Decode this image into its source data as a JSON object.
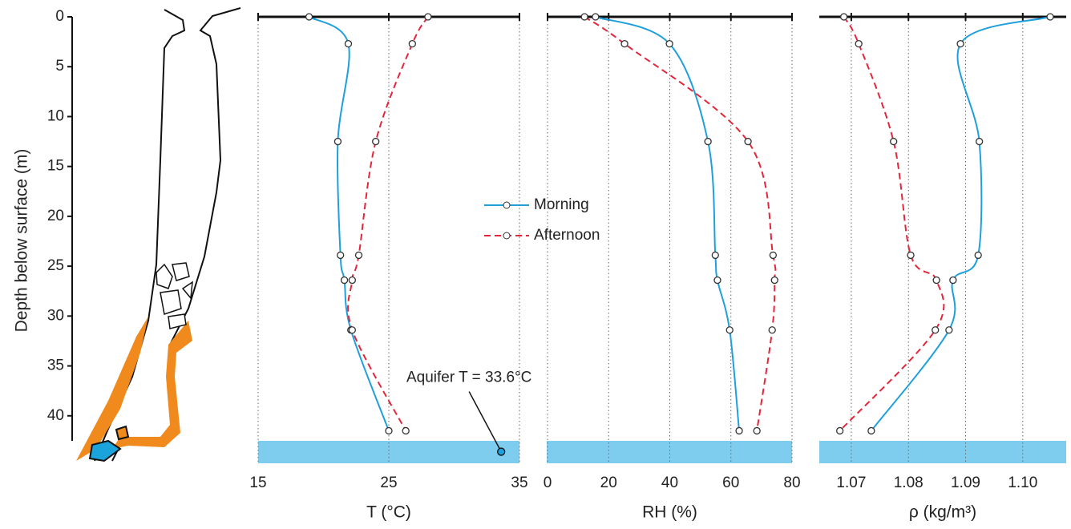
{
  "chart_data": [
    {
      "type": "line",
      "ylabel": "Depth below surface (m)",
      "xlabel": "T (°C)",
      "ylim": [
        0,
        45
      ],
      "yticks": [
        0,
        5,
        10,
        15,
        20,
        25,
        30,
        35,
        40
      ],
      "xlim": [
        15,
        35
      ],
      "xticks": [
        15,
        25,
        35
      ],
      "grid": true,
      "y": [
        0,
        2.7,
        12.5,
        23.9,
        26.4,
        31.4,
        41.5
      ],
      "series": [
        {
          "name": "Morning",
          "color": "#1f9fdc",
          "dash": false,
          "values": [
            18.9,
            21.9,
            21.1,
            21.3,
            21.6,
            22.1,
            25.0
          ]
        },
        {
          "name": "Afternoon",
          "color": "#e3263a",
          "dash": true,
          "values": [
            28.0,
            26.8,
            24.0,
            22.7,
            22.2,
            22.2,
            26.3
          ]
        }
      ],
      "annotations": [
        {
          "text": "Aquifer T = 33.6°C",
          "x": 33.6,
          "y": 43.6
        }
      ]
    },
    {
      "type": "line",
      "xlabel": "RH (%)",
      "xlim": [
        0,
        80
      ],
      "xticks": [
        0,
        20,
        40,
        60,
        80
      ],
      "grid": true,
      "y": [
        0,
        2.7,
        12.5,
        23.9,
        26.4,
        31.4,
        41.5
      ],
      "series": [
        {
          "color": "#1f9fdc",
          "dash": false,
          "values": [
            15.7,
            39.9,
            52.5,
            54.9,
            55.6,
            59.6,
            62.7
          ]
        },
        {
          "color": "#e3263a",
          "dash": true,
          "values": [
            12.1,
            25.2,
            65.6,
            73.8,
            74.3,
            73.5,
            68.5
          ]
        }
      ]
    },
    {
      "type": "line",
      "xlabel": "ρ (kg/m³)",
      "xlim": [
        1.0644,
        1.1076
      ],
      "xticks": [
        {
          "value": 1.07,
          "label": "1.07"
        },
        {
          "value": 1.08,
          "label": "1.08"
        },
        {
          "value": 1.09,
          "label": "1.09"
        },
        {
          "value": 1.1,
          "label": "1.10"
        }
      ],
      "grid": true,
      "y": [
        0,
        2.7,
        12.5,
        23.9,
        26.4,
        31.4,
        41.5
      ],
      "series": [
        {
          "color": "#1f9fdc",
          "dash": false,
          "values": [
            1.1048,
            1.0891,
            1.0924,
            1.0922,
            1.0878,
            1.0871,
            1.0735
          ]
        },
        {
          "color": "#e3263a",
          "dash": true,
          "values": [
            1.0687,
            1.0713,
            1.0774,
            1.0804,
            1.0849,
            1.0847,
            1.068
          ]
        }
      ]
    }
  ]
}
